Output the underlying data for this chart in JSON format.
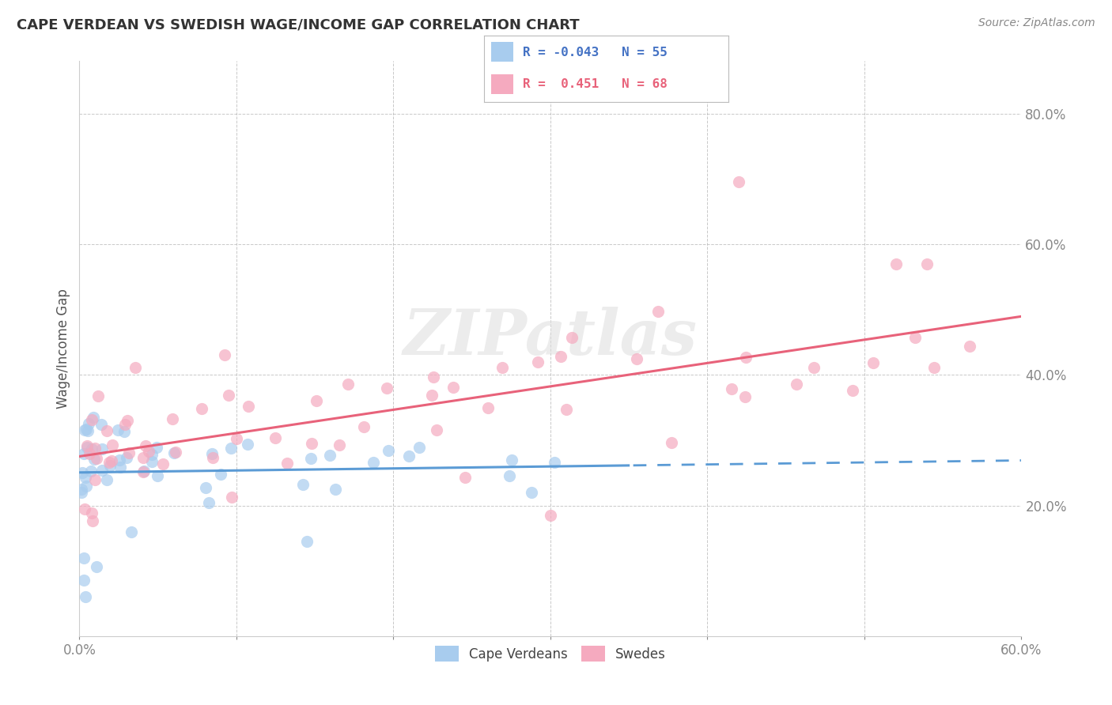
{
  "title": "CAPE VERDEAN VS SWEDISH WAGE/INCOME GAP CORRELATION CHART",
  "source": "Source: ZipAtlas.com",
  "ylabel": "Wage/Income Gap",
  "ytick_labels": [
    "20.0%",
    "40.0%",
    "60.0%",
    "80.0%"
  ],
  "ytick_values": [
    0.2,
    0.4,
    0.6,
    0.8
  ],
  "xlim": [
    0.0,
    0.6
  ],
  "ylim": [
    0.0,
    0.88
  ],
  "watermark": "ZIPatlas",
  "legend_blue_text": "R = -0.043   N = 55",
  "legend_pink_text": "R =  0.451   N = 68",
  "legend_label_blue": "Cape Verdeans",
  "legend_label_pink": "Swedes",
  "blue_scatter_color": "#A8CCEE",
  "pink_scatter_color": "#F5AABF",
  "blue_line_color": "#5B9BD5",
  "pink_line_color": "#E8627A",
  "blue_text_color": "#4472C4",
  "pink_text_color": "#E8627A",
  "background_color": "#FFFFFF",
  "grid_color": "#BBBBBB",
  "blue_line_solid_end": 0.35,
  "pink_line_start": 0.29,
  "pink_line_end": 0.47,
  "blue_line_start": 0.289,
  "blue_line_end": 0.262
}
